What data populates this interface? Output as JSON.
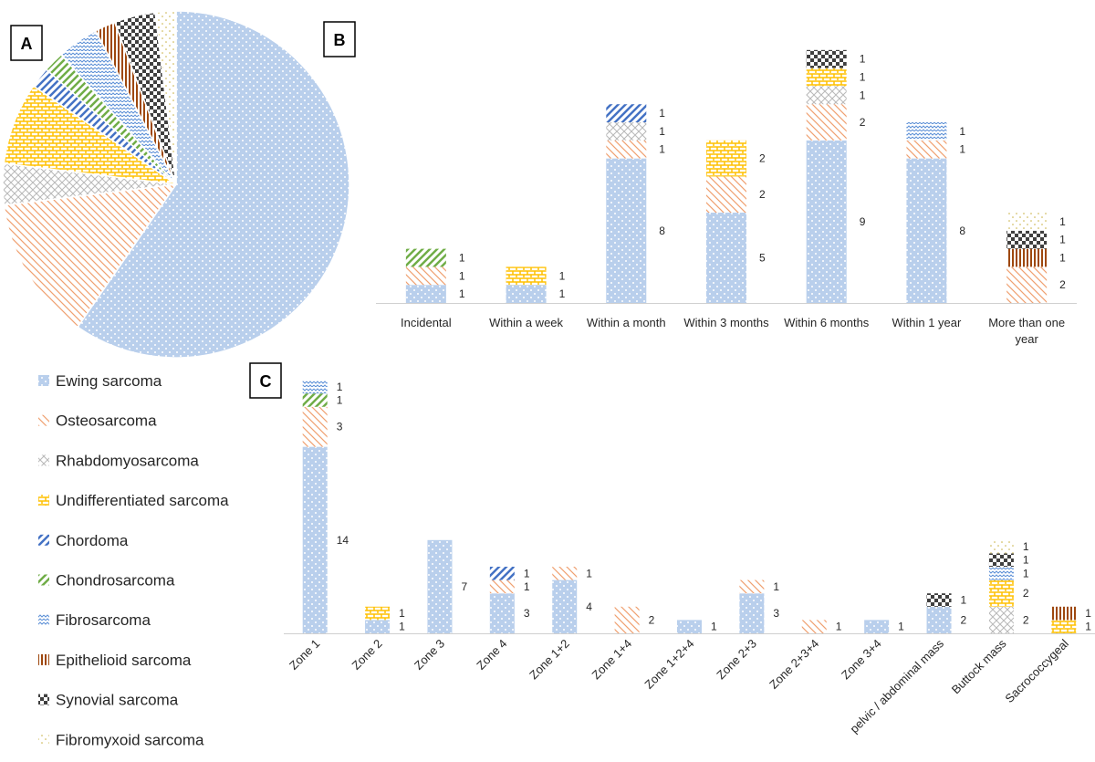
{
  "colors": {
    "Ewing sarcoma": "#7fa8dc",
    "Osteosarcoma": "#f0a070",
    "Rhabdomyosarcoma": "#b8b8b8",
    "Undifferentiated sarcoma": "#ffc000",
    "Chordoma": "#4472c4",
    "Chondrosarcoma": "#70ad47",
    "Fibrosarcoma": "#5b8fd6",
    "Epithelioid sarcoma": "#9e480e",
    "Synovial sarcoma": "#404040",
    "Fibromyxoid sarcoma": "#c8b040"
  },
  "chart_data": [
    {
      "type": "pie",
      "panel": "A",
      "labels": [
        "Ewing sarcoma",
        "Osteosarcoma",
        "Rhabdomyosarcoma",
        "Undifferentiated sarcoma",
        "Chordoma",
        "Chondrosarcoma",
        "Fibrosarcoma",
        "Epithelioid sarcoma",
        "Synovial sarcoma",
        "Fibromyxoid sarcoma"
      ],
      "values": [
        31,
        7,
        2,
        4,
        1,
        1,
        2,
        1,
        2,
        1
      ]
    },
    {
      "type": "bar",
      "panel": "B",
      "stacked": true,
      "categories": [
        "Incidental",
        "Within a week",
        "Within a month",
        "Within 3 months",
        "Within 6 months",
        "Within 1 year",
        "More than one year"
      ],
      "series": [
        {
          "name": "Ewing sarcoma",
          "values": [
            1,
            1,
            8,
            5,
            9,
            8,
            0
          ]
        },
        {
          "name": "Osteosarcoma",
          "values": [
            1,
            0,
            1,
            2,
            2,
            1,
            2
          ]
        },
        {
          "name": "Rhabdomyosarcoma",
          "values": [
            0,
            0,
            1,
            0,
            1,
            0,
            0
          ]
        },
        {
          "name": "Undifferentiated sarcoma",
          "values": [
            0,
            1,
            0,
            2,
            1,
            0,
            0
          ]
        },
        {
          "name": "Chordoma",
          "values": [
            0,
            0,
            1,
            0,
            0,
            0,
            0
          ]
        },
        {
          "name": "Chondrosarcoma",
          "values": [
            1,
            0,
            0,
            0,
            0,
            0,
            0
          ]
        },
        {
          "name": "Fibrosarcoma",
          "values": [
            0,
            0,
            0,
            0,
            0,
            1,
            0
          ]
        },
        {
          "name": "Epithelioid sarcoma",
          "values": [
            0,
            0,
            0,
            0,
            0,
            0,
            1
          ]
        },
        {
          "name": "Synovial sarcoma",
          "values": [
            0,
            0,
            0,
            0,
            1,
            0,
            1
          ]
        },
        {
          "name": "Fibromyxoid sarcoma",
          "values": [
            0,
            0,
            0,
            0,
            0,
            0,
            1
          ]
        }
      ]
    },
    {
      "type": "bar",
      "panel": "C",
      "stacked": true,
      "categories": [
        "Zone 1",
        "Zone 2",
        "Zone 3",
        "Zone 4",
        "Zone 1+2",
        "Zone 1+4",
        "Zone 1+2+4",
        "Zone 2+3",
        "Zone 2+3+4",
        "Zone 3+4",
        "pelvic / abdominal mass",
        "Buttock mass",
        "Sacrococcygeal"
      ],
      "series": [
        {
          "name": "Ewing sarcoma",
          "values": [
            14,
            1,
            7,
            3,
            4,
            0,
            1,
            3,
            0,
            1,
            2,
            0,
            0
          ]
        },
        {
          "name": "Osteosarcoma",
          "values": [
            3,
            0,
            0,
            1,
            1,
            2,
            0,
            1,
            1,
            0,
            0,
            0,
            0
          ]
        },
        {
          "name": "Rhabdomyosarcoma",
          "values": [
            0,
            0,
            0,
            0,
            0,
            0,
            0,
            0,
            0,
            0,
            0,
            2,
            0
          ]
        },
        {
          "name": "Undifferentiated sarcoma",
          "values": [
            0,
            1,
            0,
            0,
            0,
            0,
            0,
            0,
            0,
            0,
            0,
            2,
            1
          ]
        },
        {
          "name": "Chordoma",
          "values": [
            0,
            0,
            0,
            1,
            0,
            0,
            0,
            0,
            0,
            0,
            0,
            0,
            0
          ]
        },
        {
          "name": "Chondrosarcoma",
          "values": [
            1,
            0,
            0,
            0,
            0,
            0,
            0,
            0,
            0,
            0,
            0,
            0,
            0
          ]
        },
        {
          "name": "Fibrosarcoma",
          "values": [
            1,
            0,
            0,
            0,
            0,
            0,
            0,
            0,
            0,
            0,
            0,
            1,
            0
          ]
        },
        {
          "name": "Epithelioid sarcoma",
          "values": [
            0,
            0,
            0,
            0,
            0,
            0,
            0,
            0,
            0,
            0,
            0,
            0,
            1
          ]
        },
        {
          "name": "Synovial sarcoma",
          "values": [
            0,
            0,
            0,
            0,
            0,
            0,
            0,
            0,
            0,
            0,
            1,
            1,
            0
          ]
        },
        {
          "name": "Fibromyxoid sarcoma",
          "values": [
            0,
            0,
            0,
            0,
            0,
            0,
            0,
            0,
            0,
            0,
            0,
            1,
            0
          ]
        }
      ]
    }
  ],
  "legend": [
    "Ewing sarcoma",
    "Osteosarcoma",
    "Rhabdomyosarcoma",
    "Undifferentiated sarcoma",
    "Chordoma",
    "Chondrosarcoma",
    "Fibrosarcoma",
    "Epithelioid sarcoma",
    "Synovial sarcoma",
    "Fibromyxoid sarcoma"
  ],
  "panel_labels": {
    "a": "A",
    "b": "B",
    "c": "C"
  }
}
